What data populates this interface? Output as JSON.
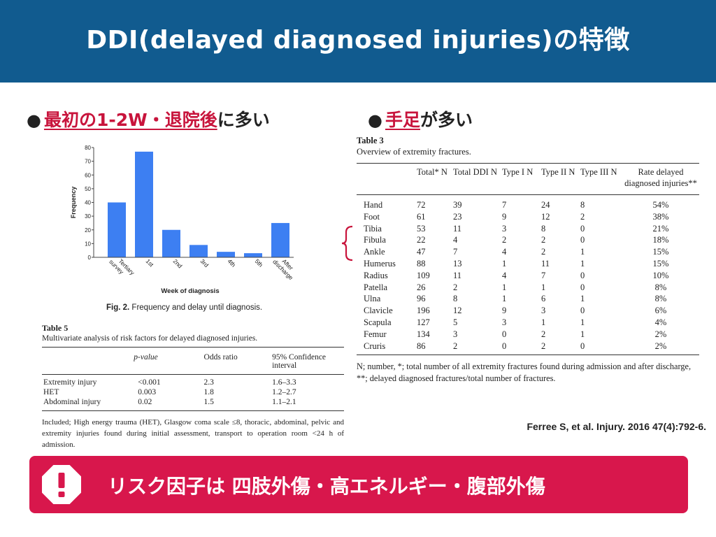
{
  "header": {
    "title": "DDI(delayed diagnosed injuries)の特徴"
  },
  "bullets": {
    "left": {
      "highlight": "最初の1-2W・退院後",
      "rest": "に多い"
    },
    "right": {
      "highlight": "手足",
      "rest": "が多い"
    }
  },
  "figure": {
    "caption_bold": "Fig. 2.",
    "caption": " Frequency and delay until diagnosis."
  },
  "chart_data": {
    "type": "bar",
    "xlabel": "Week of diagnosis",
    "ylabel": "Frequency",
    "ylim": [
      0,
      80
    ],
    "yticks": [
      "0",
      "10",
      "20",
      "30",
      "40",
      "50",
      "60",
      "70",
      "80"
    ],
    "categories": [
      "Tertiary survey",
      "1st",
      "2nd",
      "3rd",
      "4th",
      "5th",
      "After discharge"
    ],
    "values": [
      40,
      77,
      20,
      9,
      4,
      3,
      25
    ],
    "color": "#3d7ff2"
  },
  "table5": {
    "number": "Table 5",
    "title": "Multivariate analysis of risk factors for delayed diagnosed injuries.",
    "headers": [
      "",
      "p-value",
      "Odds ratio",
      "95% Confidence interval"
    ],
    "rows": [
      [
        "Extremity injury",
        "<0.001",
        "2.3",
        "1.6–3.3"
      ],
      [
        "HET",
        "0.003",
        "1.8",
        "1.2–2.7"
      ],
      [
        "Abdominal injury",
        "0.02",
        "1.5",
        "1.1–2.1"
      ]
    ],
    "note": "Included; High energy trauma (HET), Glasgow coma scale ≤8, thoracic, abdominal, pelvic and extremity injuries found during initial assessment, transport to operation room <24 h of admission."
  },
  "table3": {
    "number": "Table 3",
    "title": "Overview of extremity fractures.",
    "headers": [
      "",
      "Total* N",
      "Total DDI N",
      "Type I N",
      "Type II N",
      "Type III N",
      "Rate delayed diagnosed injuries**"
    ],
    "rows": [
      [
        "Hand",
        "72",
        "39",
        "7",
        "24",
        "8",
        "54%"
      ],
      [
        "Foot",
        "61",
        "23",
        "9",
        "12",
        "2",
        "38%"
      ],
      [
        "Tibia",
        "53",
        "11",
        "3",
        "8",
        "0",
        "21%"
      ],
      [
        "Fibula",
        "22",
        "4",
        "2",
        "2",
        "0",
        "18%"
      ],
      [
        "Ankle",
        "47",
        "7",
        "4",
        "2",
        "1",
        "15%"
      ],
      [
        "Humerus",
        "88",
        "13",
        "1",
        "11",
        "1",
        "15%"
      ],
      [
        "Radius",
        "109",
        "11",
        "4",
        "7",
        "0",
        "10%"
      ],
      [
        "Patella",
        "26",
        "2",
        "1",
        "1",
        "0",
        "8%"
      ],
      [
        "Ulna",
        "96",
        "8",
        "1",
        "6",
        "1",
        "8%"
      ],
      [
        "Clavicle",
        "196",
        "12",
        "9",
        "3",
        "0",
        "6%"
      ],
      [
        "Scapula",
        "127",
        "5",
        "3",
        "1",
        "1",
        "4%"
      ],
      [
        "Femur",
        "134",
        "3",
        "0",
        "2",
        "1",
        "2%"
      ],
      [
        "Cruris",
        "86",
        "2",
        "0",
        "2",
        "0",
        "2%"
      ]
    ],
    "note": "N; number, *; total number of all extremity fractures found during admission and after discharge, **; delayed diagnosed fractures/total number of fractures."
  },
  "citation": "Ferree S, et al. Injury. 2016 47(4):792-6.",
  "banner": {
    "icon": "exclamation-icon",
    "text": "リスク因子は 四肢外傷・高エネルギー・腹部外傷",
    "color": "#d8174c"
  }
}
